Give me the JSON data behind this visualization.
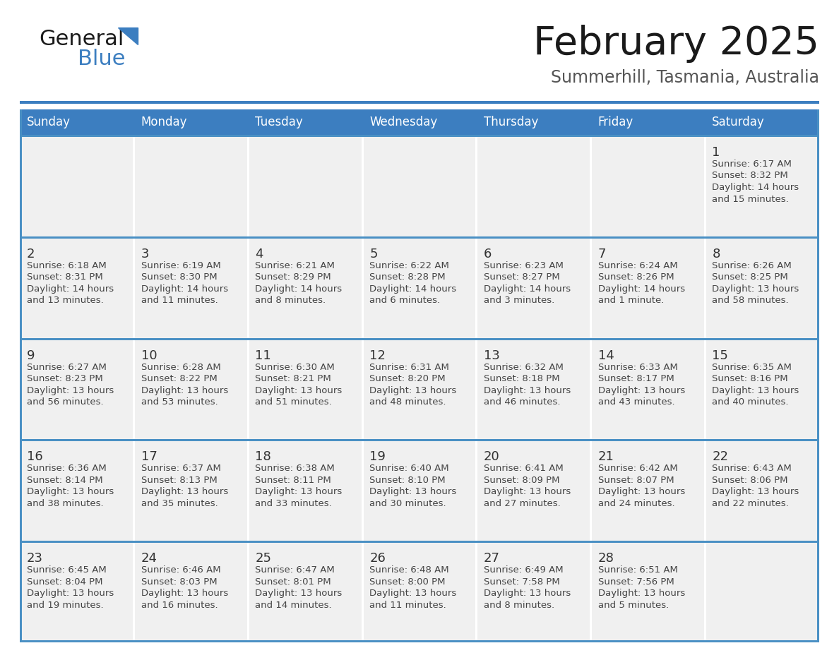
{
  "title": "February 2025",
  "subtitle": "Summerhill, Tasmania, Australia",
  "header_bg": "#3C7EC0",
  "header_text_color": "#FFFFFF",
  "cell_bg": "#F0F0F0",
  "day_number_color": "#333333",
  "text_color": "#444444",
  "row_separator_color": "#4A90C4",
  "col_separator_color": "#FFFFFF",
  "outer_border_color": "#4A90C4",
  "days_of_week": [
    "Sunday",
    "Monday",
    "Tuesday",
    "Wednesday",
    "Thursday",
    "Friday",
    "Saturday"
  ],
  "weeks": [
    [
      {
        "day": null,
        "info": null
      },
      {
        "day": null,
        "info": null
      },
      {
        "day": null,
        "info": null
      },
      {
        "day": null,
        "info": null
      },
      {
        "day": null,
        "info": null
      },
      {
        "day": null,
        "info": null
      },
      {
        "day": "1",
        "info": "Sunrise: 6:17 AM\nSunset: 8:32 PM\nDaylight: 14 hours\nand 15 minutes."
      }
    ],
    [
      {
        "day": "2",
        "info": "Sunrise: 6:18 AM\nSunset: 8:31 PM\nDaylight: 14 hours\nand 13 minutes."
      },
      {
        "day": "3",
        "info": "Sunrise: 6:19 AM\nSunset: 8:30 PM\nDaylight: 14 hours\nand 11 minutes."
      },
      {
        "day": "4",
        "info": "Sunrise: 6:21 AM\nSunset: 8:29 PM\nDaylight: 14 hours\nand 8 minutes."
      },
      {
        "day": "5",
        "info": "Sunrise: 6:22 AM\nSunset: 8:28 PM\nDaylight: 14 hours\nand 6 minutes."
      },
      {
        "day": "6",
        "info": "Sunrise: 6:23 AM\nSunset: 8:27 PM\nDaylight: 14 hours\nand 3 minutes."
      },
      {
        "day": "7",
        "info": "Sunrise: 6:24 AM\nSunset: 8:26 PM\nDaylight: 14 hours\nand 1 minute."
      },
      {
        "day": "8",
        "info": "Sunrise: 6:26 AM\nSunset: 8:25 PM\nDaylight: 13 hours\nand 58 minutes."
      }
    ],
    [
      {
        "day": "9",
        "info": "Sunrise: 6:27 AM\nSunset: 8:23 PM\nDaylight: 13 hours\nand 56 minutes."
      },
      {
        "day": "10",
        "info": "Sunrise: 6:28 AM\nSunset: 8:22 PM\nDaylight: 13 hours\nand 53 minutes."
      },
      {
        "day": "11",
        "info": "Sunrise: 6:30 AM\nSunset: 8:21 PM\nDaylight: 13 hours\nand 51 minutes."
      },
      {
        "day": "12",
        "info": "Sunrise: 6:31 AM\nSunset: 8:20 PM\nDaylight: 13 hours\nand 48 minutes."
      },
      {
        "day": "13",
        "info": "Sunrise: 6:32 AM\nSunset: 8:18 PM\nDaylight: 13 hours\nand 46 minutes."
      },
      {
        "day": "14",
        "info": "Sunrise: 6:33 AM\nSunset: 8:17 PM\nDaylight: 13 hours\nand 43 minutes."
      },
      {
        "day": "15",
        "info": "Sunrise: 6:35 AM\nSunset: 8:16 PM\nDaylight: 13 hours\nand 40 minutes."
      }
    ],
    [
      {
        "day": "16",
        "info": "Sunrise: 6:36 AM\nSunset: 8:14 PM\nDaylight: 13 hours\nand 38 minutes."
      },
      {
        "day": "17",
        "info": "Sunrise: 6:37 AM\nSunset: 8:13 PM\nDaylight: 13 hours\nand 35 minutes."
      },
      {
        "day": "18",
        "info": "Sunrise: 6:38 AM\nSunset: 8:11 PM\nDaylight: 13 hours\nand 33 minutes."
      },
      {
        "day": "19",
        "info": "Sunrise: 6:40 AM\nSunset: 8:10 PM\nDaylight: 13 hours\nand 30 minutes."
      },
      {
        "day": "20",
        "info": "Sunrise: 6:41 AM\nSunset: 8:09 PM\nDaylight: 13 hours\nand 27 minutes."
      },
      {
        "day": "21",
        "info": "Sunrise: 6:42 AM\nSunset: 8:07 PM\nDaylight: 13 hours\nand 24 minutes."
      },
      {
        "day": "22",
        "info": "Sunrise: 6:43 AM\nSunset: 8:06 PM\nDaylight: 13 hours\nand 22 minutes."
      }
    ],
    [
      {
        "day": "23",
        "info": "Sunrise: 6:45 AM\nSunset: 8:04 PM\nDaylight: 13 hours\nand 19 minutes."
      },
      {
        "day": "24",
        "info": "Sunrise: 6:46 AM\nSunset: 8:03 PM\nDaylight: 13 hours\nand 16 minutes."
      },
      {
        "day": "25",
        "info": "Sunrise: 6:47 AM\nSunset: 8:01 PM\nDaylight: 13 hours\nand 14 minutes."
      },
      {
        "day": "26",
        "info": "Sunrise: 6:48 AM\nSunset: 8:00 PM\nDaylight: 13 hours\nand 11 minutes."
      },
      {
        "day": "27",
        "info": "Sunrise: 6:49 AM\nSunset: 7:58 PM\nDaylight: 13 hours\nand 8 minutes."
      },
      {
        "day": "28",
        "info": "Sunrise: 6:51 AM\nSunset: 7:56 PM\nDaylight: 13 hours\nand 5 minutes."
      },
      {
        "day": null,
        "info": null
      }
    ]
  ]
}
